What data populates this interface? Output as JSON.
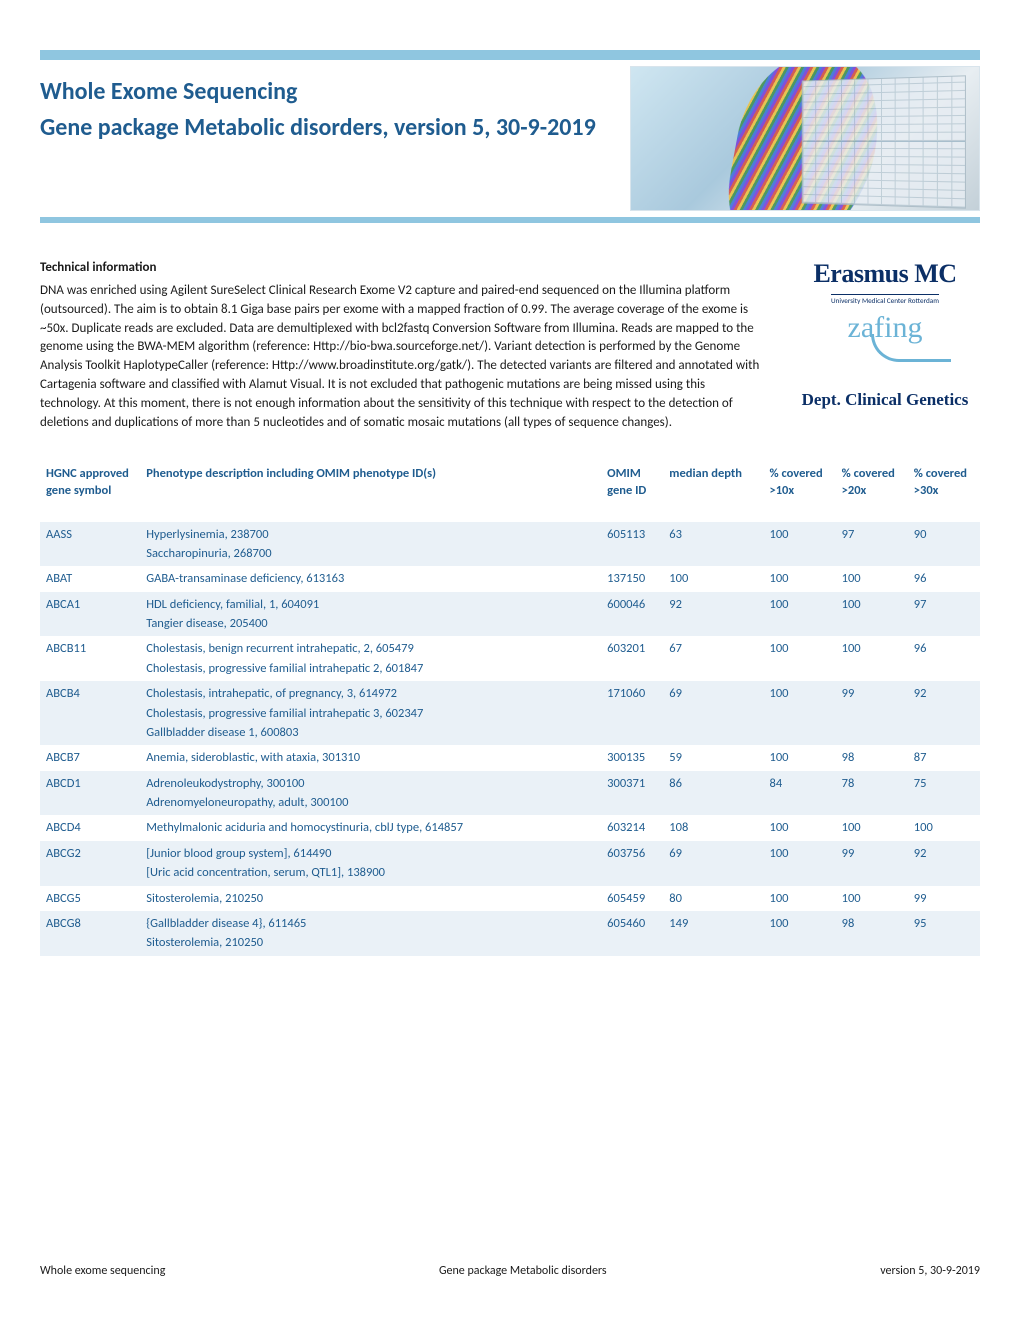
{
  "header": {
    "title_line1": "Whole Exome Sequencing",
    "title_line2": "Gene package Metabolic disorders, version 5, 30-9-2019"
  },
  "tech": {
    "heading": "Technical information",
    "body": "DNA was enriched using Agilent SureSelect Clinical Research Exome V2 capture and paired-end sequenced on the Illumina platform (outsourced). The aim is to obtain 8.1 Giga base pairs per exome with a mapped fraction of 0.99. The average coverage of the exome is ~50x. Duplicate reads are excluded. Data are demultiplexed with bcl2fastq Conversion Software from Illumina. Reads are mapped to the genome using the BWA-MEM algorithm (reference: Http://bio-bwa.sourceforge.net/). Variant detection is performed by the Genome Analysis Toolkit HaplotypeCaller (reference: Http://www.broadinstitute.org/gatk/). The detected variants are filtered and annotated with Cartagenia software and classified with Alamut Visual. It is not excluded that pathogenic mutations are being missed using this technology. At this moment, there is not enough information about the sensitivity of this technique with respect to the detection of deletions and duplications of more than 5 nucleotides and of somatic mosaic mutations (all types of sequence changes)."
  },
  "logo": {
    "name": "Erasmus MC",
    "sub": "University Medical Center Rotterdam",
    "script": "zafing",
    "dept": "Dept. Clinical Genetics"
  },
  "table": {
    "columns": {
      "gene": "HGNC approved gene symbol",
      "phen": "Phenotype description including OMIM phenotype ID(s)",
      "omim": "OMIM gene ID",
      "depth": "median depth",
      "c10": "% covered >10x",
      "c20": "% covered >20x",
      "c30": "% covered >30x"
    },
    "rows": [
      {
        "gene": "AASS",
        "phen": "Hyperlysinemia, 238700\nSaccharopinuria, 268700",
        "omim": "605113",
        "depth": "63",
        "c10": "100",
        "c20": "97",
        "c30": "90"
      },
      {
        "gene": "ABAT",
        "phen": "GABA-transaminase deficiency, 613163",
        "omim": "137150",
        "depth": "100",
        "c10": "100",
        "c20": "100",
        "c30": "96"
      },
      {
        "gene": "ABCA1",
        "phen": "HDL deficiency, familial, 1, 604091\nTangier disease, 205400",
        "omim": "600046",
        "depth": "92",
        "c10": "100",
        "c20": "100",
        "c30": "97"
      },
      {
        "gene": "ABCB11",
        "phen": "Cholestasis, benign recurrent intrahepatic, 2, 605479\nCholestasis, progressive familial intrahepatic 2, 601847",
        "omim": "603201",
        "depth": "67",
        "c10": "100",
        "c20": "100",
        "c30": "96"
      },
      {
        "gene": "ABCB4",
        "phen": "Cholestasis, intrahepatic, of pregnancy, 3, 614972\nCholestasis, progressive familial intrahepatic 3, 602347\nGallbladder disease 1, 600803",
        "omim": "171060",
        "depth": "69",
        "c10": "100",
        "c20": "99",
        "c30": "92"
      },
      {
        "gene": "ABCB7",
        "phen": "Anemia, sideroblastic, with ataxia, 301310",
        "omim": "300135",
        "depth": "59",
        "c10": "100",
        "c20": "98",
        "c30": "87"
      },
      {
        "gene": "ABCD1",
        "phen": "Adrenoleukodystrophy, 300100\nAdrenomyeloneuropathy, adult, 300100",
        "omim": "300371",
        "depth": "86",
        "c10": "84",
        "c20": "78",
        "c30": "75"
      },
      {
        "gene": "ABCD4",
        "phen": "Methylmalonic aciduria and homocystinuria, cblJ type, 614857",
        "omim": "603214",
        "depth": "108",
        "c10": "100",
        "c20": "100",
        "c30": "100"
      },
      {
        "gene": "ABCG2",
        "phen": "[Junior blood group system], 614490\n[Uric acid concentration, serum, QTL1], 138900",
        "omim": "603756",
        "depth": "69",
        "c10": "100",
        "c20": "99",
        "c30": "92"
      },
      {
        "gene": "ABCG5",
        "phen": "Sitosterolemia, 210250",
        "omim": "605459",
        "depth": "80",
        "c10": "100",
        "c20": "100",
        "c30": "99"
      },
      {
        "gene": "ABCG8",
        "phen": "{Gallbladder disease 4}, 611465\nSitosterolemia, 210250",
        "omim": "605460",
        "depth": "149",
        "c10": "100",
        "c20": "98",
        "c30": "95"
      }
    ]
  },
  "footer": {
    "left": "Whole exome sequencing",
    "center": "Gene package Metabolic disorders",
    "right": "version 5, 30-9-2019"
  },
  "colors": {
    "bar": "#8fc6e0",
    "title": "#1f5c8f",
    "row_alt": "#eaf1f7",
    "logo": "#0b2f66",
    "script": "#6bb3d6"
  }
}
